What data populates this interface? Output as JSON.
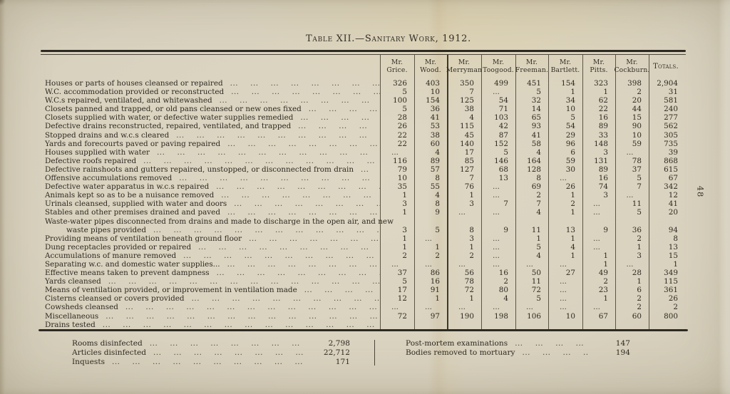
{
  "page": {
    "title": "Table XII.—Sanitary Work, 1912.",
    "page_number": "48"
  },
  "decor": {
    "leader_unit": "..."
  },
  "table": {
    "columns": [
      "Mr. Grice.",
      "Mr. Wood.",
      "Mr. Merryman",
      "Mr. Toogood.",
      "Mr. Freeman.",
      "Mr. Bartlett.",
      "Mr. Pitts.",
      "Mr. Cockburn.",
      "Totals."
    ],
    "rows": [
      {
        "label": "Houses or parts of houses cleansed or repaired",
        "values": [
          "326",
          "403",
          "350",
          "499",
          "451",
          "154",
          "323",
          "398",
          "2,904"
        ]
      },
      {
        "label": "W.C. accommodation provided or reconstructed",
        "values": [
          "5",
          "10",
          "7",
          "...",
          "5",
          "1",
          "1",
          "2",
          "31"
        ]
      },
      {
        "label": "W.C.s repaired, ventilated, and whitewashed",
        "values": [
          "100",
          "154",
          "125",
          "54",
          "32",
          "34",
          "62",
          "20",
          "581"
        ]
      },
      {
        "label": "Closets panned and trapped, or old pans cleansed or new ones fixed",
        "values": [
          "5",
          "36",
          "38",
          "71",
          "14",
          "10",
          "22",
          "44",
          "240"
        ]
      },
      {
        "label": "Closets supplied with water, or defective water supplies remedied",
        "values": [
          "28",
          "41",
          "4",
          "103",
          "65",
          "5",
          "16",
          "15",
          "277"
        ]
      },
      {
        "label": "Defective drains reconstructed, repaired, ventilated, and trapped",
        "values": [
          "26",
          "53",
          "115",
          "42",
          "93",
          "54",
          "89",
          "90",
          "562"
        ]
      },
      {
        "label": "Stopped drains and w.c.s cleared",
        "values": [
          "22",
          "38",
          "45",
          "87",
          "41",
          "29",
          "33",
          "10",
          "305"
        ]
      },
      {
        "label": "Yards and forecourts paved or paving repaired",
        "values": [
          "22",
          "60",
          "140",
          "152",
          "58",
          "96",
          "148",
          "59",
          "735"
        ]
      },
      {
        "label": "Houses supplied with water",
        "values": [
          "...",
          "4",
          "17",
          "5",
          "4",
          "6",
          "3",
          "...",
          "39"
        ]
      },
      {
        "label": "Defective roofs repaired",
        "values": [
          "116",
          "89",
          "85",
          "146",
          "164",
          "59",
          "131",
          "78",
          "868"
        ]
      },
      {
        "label": "Defective rainshoots and gutters repaired, unstopped, or disconnected from drain",
        "values": [
          "79",
          "57",
          "127",
          "68",
          "128",
          "30",
          "89",
          "37",
          "615"
        ]
      },
      {
        "label": "Offensive accumulations removed",
        "values": [
          "10",
          "8",
          "7",
          "13",
          "8",
          "...",
          "16",
          "5",
          "67"
        ]
      },
      {
        "label": "Defective water apparatus in w.c.s repaired",
        "values": [
          "35",
          "55",
          "76",
          "...",
          "69",
          "26",
          "74",
          "7",
          "342"
        ]
      },
      {
        "label": "Animals kept so as to be a nuisance removed",
        "values": [
          "1",
          "4",
          "1",
          "...",
          "2",
          "1",
          "3",
          "...",
          "12"
        ]
      },
      {
        "label": "Urinals cleansed, supplied with water and doors",
        "values": [
          "3",
          "8",
          "3",
          "7",
          "7",
          "2",
          "...",
          "11",
          "41"
        ]
      },
      {
        "label": "Stables and other premises drained and paved",
        "values": [
          "1",
          "9",
          "...",
          "...",
          "4",
          "1",
          "...",
          "5",
          "20"
        ]
      },
      {
        "label": "Waste-water pipes disconnected from drains and made to discharge in the open air, and new",
        "label_cont": "waste pipes provided",
        "values": [
          "3",
          "5",
          "8",
          "9",
          "11",
          "13",
          "9",
          "36",
          "94"
        ]
      },
      {
        "label": "Providing means of ventilation beneath ground floor",
        "values": [
          "1",
          "...",
          "3",
          "...",
          "1",
          "1",
          "...",
          "2",
          "8"
        ]
      },
      {
        "label": "Dung receptacles provided or repaired",
        "values": [
          "1",
          "1",
          "1",
          "...",
          "5",
          "4",
          "...",
          "1",
          "13"
        ]
      },
      {
        "label": "Accumulations of manure removed",
        "values": [
          "2",
          "2",
          "2",
          "...",
          "4",
          "1",
          "1",
          "3",
          "15"
        ]
      },
      {
        "label": "Separating w.c. and domestic water supplies...",
        "values": [
          "...",
          "...",
          "...",
          "...",
          "...",
          "...",
          "1",
          "...",
          "1"
        ]
      },
      {
        "label": "Effective means taken to prevent dampness",
        "values": [
          "37",
          "86",
          "56",
          "16",
          "50",
          "27",
          "49",
          "28",
          "349"
        ]
      },
      {
        "label": "Yards cleansed",
        "values": [
          "5",
          "16",
          "78",
          "2",
          "11",
          "...",
          "2",
          "1",
          "115"
        ]
      },
      {
        "label": "Means of ventilation provided, or improvement in ventilation made",
        "values": [
          "17",
          "91",
          "72",
          "80",
          "72",
          "...",
          "23",
          "6",
          "361"
        ]
      },
      {
        "label": "Cisterns cleansed or covers provided",
        "values": [
          "12",
          "1",
          "1",
          "4",
          "5",
          "...",
          "1",
          "2",
          "26"
        ]
      },
      {
        "label": "Cowsheds cleansed",
        "values": [
          "...",
          "...",
          "...",
          "...",
          "...",
          "...",
          "...",
          "2",
          "2"
        ]
      },
      {
        "label": "Miscellaneous",
        "values": [
          "72",
          "97",
          "190",
          "198",
          "106",
          "10",
          "67",
          "60",
          "800"
        ]
      },
      {
        "label": "Drains tested",
        "values": [
          "",
          "",
          "",
          "",
          "",
          "",
          "",
          "",
          ""
        ]
      }
    ]
  },
  "summary": {
    "left": [
      {
        "label": "Rooms disinfected",
        "value": "2,798"
      },
      {
        "label": "Articles disinfected",
        "value": "22,712"
      },
      {
        "label": "Inquests",
        "value": "171"
      }
    ],
    "right": [
      {
        "label": "Post-mortem examinations",
        "value": "147"
      },
      {
        "label": "Bodies removed to mortuary",
        "value": "194"
      }
    ]
  }
}
